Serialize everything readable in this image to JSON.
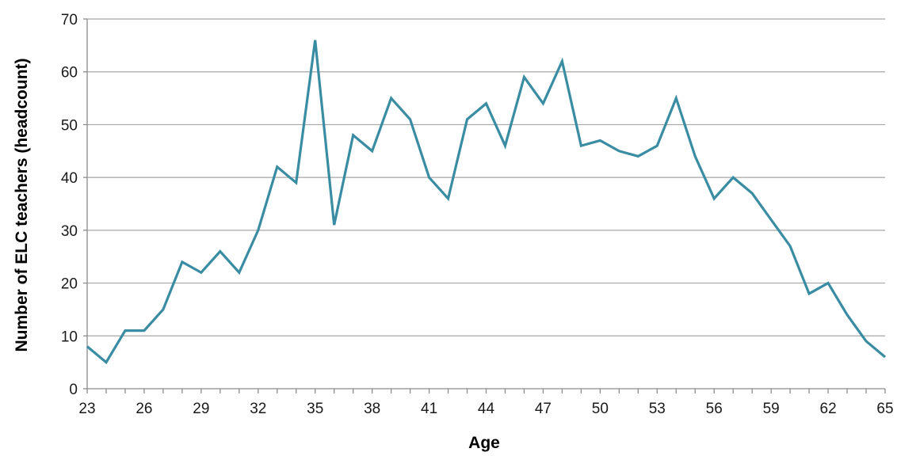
{
  "chart_data": {
    "type": "line",
    "title": "",
    "xlabel": "Age",
    "ylabel": "Number of ELC teachers (headcount)",
    "xlim": [
      23,
      65
    ],
    "ylim": [
      0,
      70
    ],
    "x_ticks": [
      23,
      26,
      29,
      32,
      35,
      38,
      41,
      44,
      47,
      50,
      53,
      56,
      59,
      62,
      65
    ],
    "y_ticks": [
      0,
      10,
      20,
      30,
      40,
      50,
      60,
      70
    ],
    "grid": "horizontal",
    "legend": "none",
    "line_color": "#3a8ca3",
    "series": [
      {
        "x": [
          23,
          24,
          25,
          26,
          27,
          28,
          29,
          30,
          31,
          32,
          33,
          34,
          35,
          36,
          37,
          38,
          39,
          40,
          41,
          42,
          43,
          44,
          45,
          46,
          47,
          48,
          49,
          50,
          51,
          52,
          53,
          54,
          55,
          56,
          57,
          58,
          59,
          60,
          61,
          62,
          63,
          64,
          65
        ],
        "values": [
          8,
          5,
          11,
          11,
          15,
          24,
          22,
          26,
          22,
          30,
          42,
          39,
          66,
          31,
          48,
          45,
          55,
          51,
          40,
          36,
          51,
          54,
          46,
          59,
          54,
          62,
          46,
          47,
          45,
          44,
          46,
          55,
          44,
          36,
          40,
          37,
          32,
          27,
          18,
          20,
          14,
          9,
          6
        ]
      }
    ]
  }
}
